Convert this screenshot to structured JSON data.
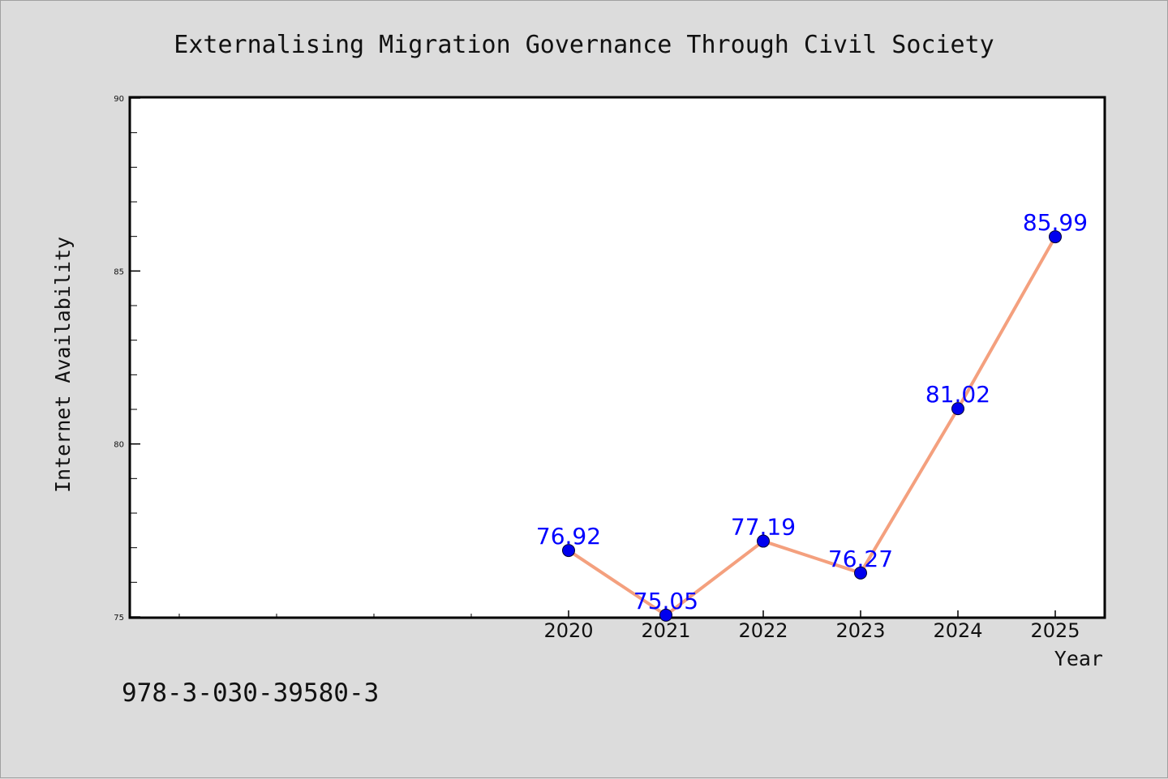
{
  "chart_data": {
    "type": "line",
    "title": "Externalising Migration Governance Through Civil Society",
    "xlabel": "Year",
    "ylabel": "Internet Availability",
    "x": [
      2020,
      2021,
      2022,
      2023,
      2024,
      2025
    ],
    "series": [
      {
        "values": [
          76.92,
          75.05,
          77.19,
          76.27,
          81.02,
          85.99
        ],
        "data_labels": [
          "76.92",
          "75.05",
          "77.19",
          "76.27",
          "81.02",
          "85.99"
        ]
      }
    ],
    "xticks": [
      "2020",
      "2021",
      "2022",
      "2023",
      "2024",
      "2025"
    ],
    "yticks": [
      "75",
      "80",
      "85",
      "90"
    ],
    "xlim": [
      2015.5,
      2025.5
    ],
    "ylim": [
      75,
      90
    ],
    "grid": false,
    "colors": {
      "line": "#f4a07e",
      "marker": "#0000ee",
      "label": "#0000ff"
    }
  },
  "footer": {
    "isbn": "978-3-030-39580-3"
  }
}
